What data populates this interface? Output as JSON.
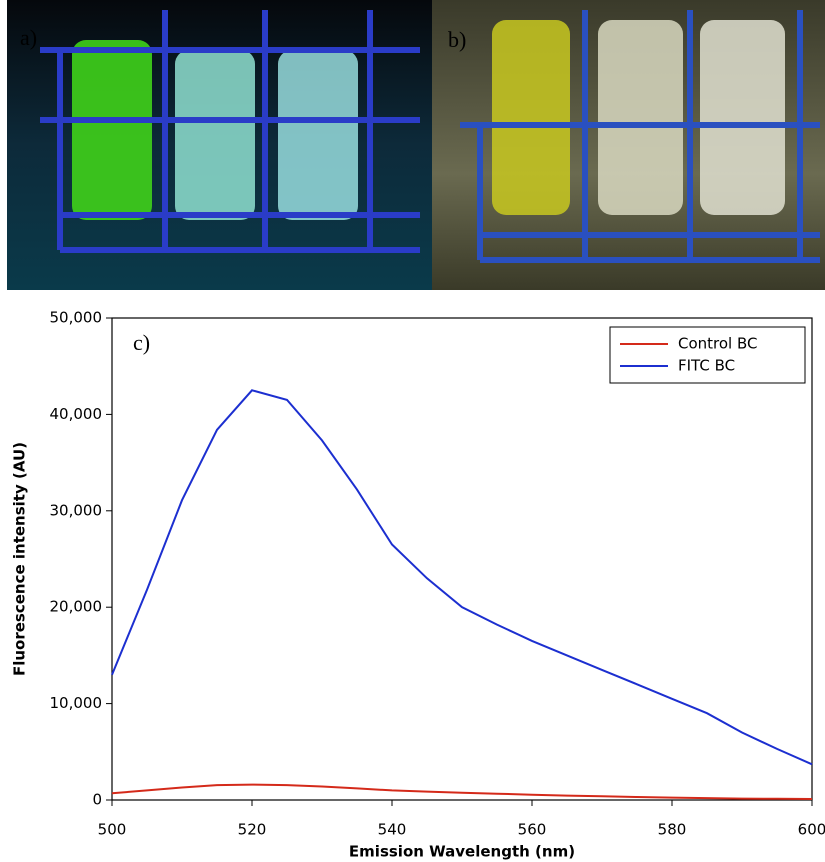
{
  "panels": {
    "a": "a)",
    "b": "b)"
  },
  "chart_data": {
    "type": "line",
    "annotation": "c)",
    "xlabel": "Emission Wavelength (nm)",
    "ylabel": "Fluorescence intensity (AU)",
    "x": [
      500,
      505,
      510,
      515,
      520,
      525,
      530,
      535,
      540,
      545,
      550,
      555,
      560,
      565,
      570,
      575,
      580,
      585,
      590,
      595,
      600
    ],
    "series": [
      {
        "name": "Control BC",
        "color": "#d42a1a",
        "values": [
          700,
          1000,
          1300,
          1550,
          1600,
          1550,
          1400,
          1200,
          1000,
          870,
          750,
          650,
          550,
          460,
          380,
          310,
          250,
          200,
          150,
          120,
          100
        ]
      },
      {
        "name": "FITC BC",
        "color": "#1c2fd0",
        "values": [
          13000,
          21800,
          31100,
          38400,
          42500,
          41500,
          37300,
          32200,
          26500,
          23000,
          20000,
          18200,
          16500,
          15000,
          13500,
          12000,
          10500,
          9000,
          7000,
          5300,
          3700
        ]
      }
    ],
    "xlim": [
      500,
      600
    ],
    "xticks": [
      500,
      520,
      540,
      560,
      580,
      600
    ],
    "ylim": [
      0,
      50000
    ],
    "yticks": [
      0,
      {
        "value": 10000,
        "label": "10,000"
      },
      {
        "value": 20000,
        "label": "20,000"
      },
      {
        "value": 30000,
        "label": "30,000"
      },
      {
        "value": 40000,
        "label": "40,000"
      },
      {
        "value": 50000,
        "label": "50,000"
      }
    ],
    "legend": "upper right"
  }
}
